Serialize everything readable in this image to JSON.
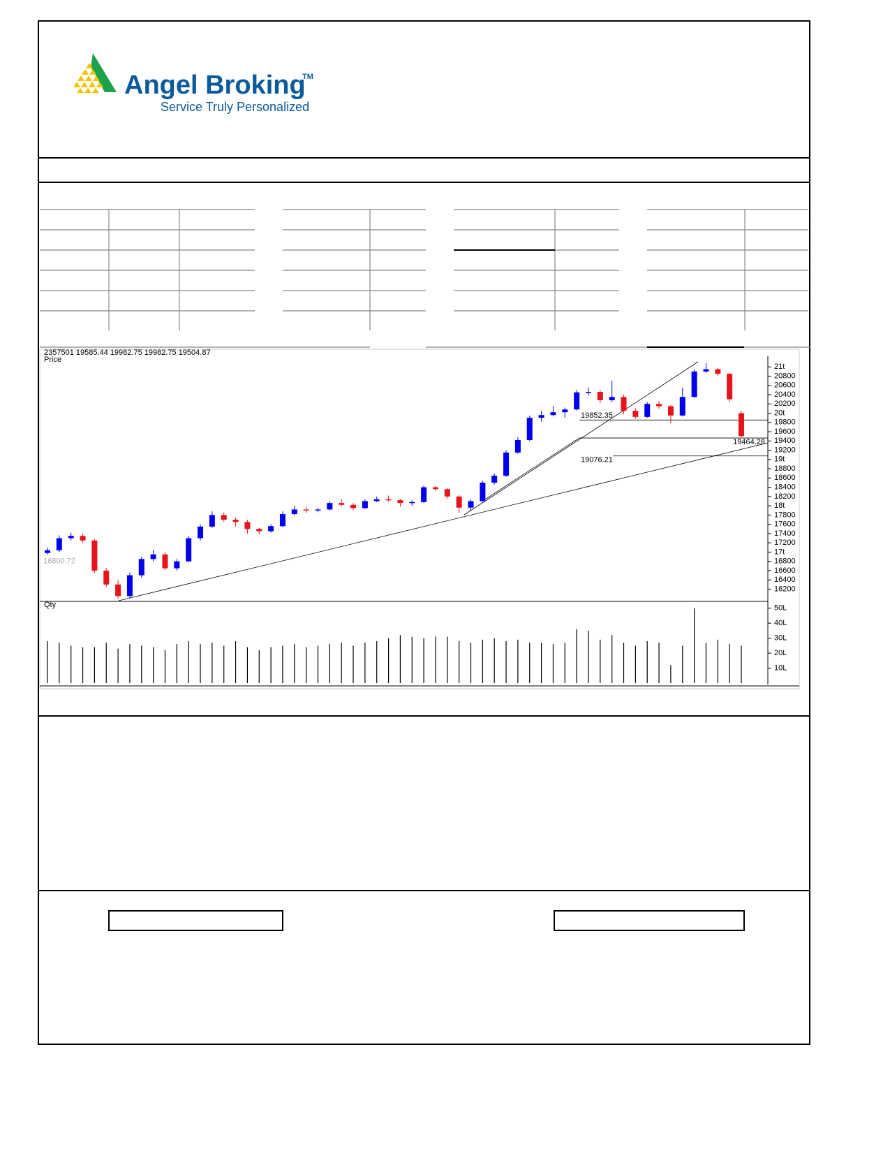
{
  "header": {
    "brand": "Angel Broking",
    "trademark": "TM",
    "tagline": "Service Truly Personalized"
  },
  "chart_data": {
    "type": "candlestick",
    "info": "2357501 19585.44 19982.75 19982.75 19504.87",
    "price_label": "Price",
    "volume_label": "Qty",
    "up_color": "#0000ee",
    "down_color": "#e8141b",
    "ylim": [
      15950,
      21230
    ],
    "yticks": [
      {
        "value": 21000,
        "label": "21t"
      },
      20800,
      20600,
      20400,
      20200,
      {
        "value": 20000,
        "label": "20t"
      },
      19800,
      19600,
      19400,
      19200,
      {
        "value": 19000,
        "label": "19t"
      },
      18800,
      18600,
      18400,
      18200,
      {
        "value": 18000,
        "label": "18t"
      },
      17800,
      17600,
      17400,
      17200,
      {
        "value": 17000,
        "label": "17t"
      },
      16800,
      16600,
      16400,
      16200
    ],
    "reference_value": 16800.72,
    "levels": [
      19852.35,
      19464.28,
      19076.21
    ],
    "ohlc": [
      [
        16980,
        17100,
        16950,
        17040
      ],
      [
        17040,
        17360,
        17000,
        17300
      ],
      [
        17300,
        17420,
        17250,
        17350
      ],
      [
        17350,
        17400,
        17200,
        17250
      ],
      [
        17250,
        17280,
        16550,
        16600
      ],
      [
        16600,
        16650,
        16250,
        16300
      ],
      [
        16300,
        16400,
        15990,
        16050
      ],
      [
        16050,
        16560,
        16000,
        16500
      ],
      [
        16500,
        16900,
        16450,
        16850
      ],
      [
        16850,
        17050,
        16800,
        16950
      ],
      [
        16950,
        17000,
        16600,
        16650
      ],
      [
        16650,
        16850,
        16600,
        16800
      ],
      [
        16800,
        17350,
        16780,
        17300
      ],
      [
        17300,
        17600,
        17250,
        17550
      ],
      [
        17550,
        17880,
        17520,
        17800
      ],
      [
        17800,
        17850,
        17650,
        17700
      ],
      [
        17700,
        17750,
        17550,
        17650
      ],
      [
        17650,
        17700,
        17400,
        17500
      ],
      [
        17500,
        17520,
        17380,
        17450
      ],
      [
        17450,
        17600,
        17420,
        17560
      ],
      [
        17560,
        17880,
        17540,
        17820
      ],
      [
        17820,
        18000,
        17800,
        17920
      ],
      [
        17920,
        17980,
        17850,
        17900
      ],
      [
        17900,
        17960,
        17860,
        17920
      ],
      [
        17920,
        18100,
        17900,
        18060
      ],
      [
        18060,
        18150,
        17980,
        18020
      ],
      [
        18020,
        18060,
        17900,
        17950
      ],
      [
        17950,
        18140,
        17930,
        18100
      ],
      [
        18100,
        18200,
        18080,
        18140
      ],
      [
        18140,
        18220,
        18090,
        18120
      ],
      [
        18120,
        18150,
        17980,
        18060
      ],
      [
        18060,
        18120,
        18000,
        18080
      ],
      [
        18080,
        18440,
        18060,
        18400
      ],
      [
        18400,
        18430,
        18320,
        18360
      ],
      [
        18360,
        18380,
        18150,
        18200
      ],
      [
        18200,
        18230,
        17840,
        17960
      ],
      [
        17960,
        18140,
        17900,
        18100
      ],
      [
        18100,
        18540,
        18080,
        18500
      ],
      [
        18500,
        18700,
        18460,
        18650
      ],
      [
        18650,
        19200,
        18620,
        19150
      ],
      [
        19150,
        19480,
        19120,
        19420
      ],
      [
        19420,
        19950,
        19400,
        19900
      ],
      [
        19900,
        20050,
        19820,
        19960
      ],
      [
        19960,
        20150,
        19930,
        20020
      ],
      [
        20020,
        20120,
        19900,
        20080
      ],
      [
        20080,
        20500,
        20060,
        20450
      ],
      [
        20450,
        20560,
        20380,
        20460
      ],
      [
        20460,
        20500,
        20220,
        20280
      ],
      [
        20280,
        20700,
        20240,
        20350
      ],
      [
        20350,
        20400,
        19980,
        20050
      ],
      [
        20050,
        20100,
        19880,
        19920
      ],
      [
        19920,
        20240,
        19900,
        20200
      ],
      [
        20200,
        20260,
        20100,
        20150
      ],
      [
        20150,
        20180,
        19780,
        19950
      ],
      [
        19950,
        20550,
        19930,
        20350
      ],
      [
        20350,
        20950,
        20330,
        20900
      ],
      [
        20900,
        21080,
        20870,
        20950
      ],
      [
        20950,
        20980,
        20800,
        20850
      ],
      [
        20850,
        20870,
        20250,
        20300
      ],
      [
        20000,
        20050,
        19480,
        19505
      ]
    ],
    "volume_ylim": [
      0,
      55
    ],
    "volume_ticks": [
      {
        "value": 50,
        "label": "50L"
      },
      {
        "value": 40,
        "label": "40L"
      },
      {
        "value": 30,
        "label": "30L"
      },
      {
        "value": 20,
        "label": "20L"
      },
      {
        "value": 10,
        "label": "10L"
      }
    ],
    "volume": [
      28,
      27,
      25,
      24,
      24,
      27,
      23,
      26,
      25,
      24,
      22,
      26,
      28,
      26,
      27,
      25,
      28,
      24,
      22,
      24,
      25,
      26,
      24,
      25,
      26,
      27,
      25,
      27,
      28,
      30,
      32,
      31,
      30,
      31,
      31,
      28,
      27,
      29,
      30,
      28,
      29,
      27,
      27,
      26,
      27,
      36,
      35,
      29,
      32,
      27,
      25,
      28,
      27,
      12,
      25,
      50,
      27,
      29,
      26,
      25
    ]
  }
}
